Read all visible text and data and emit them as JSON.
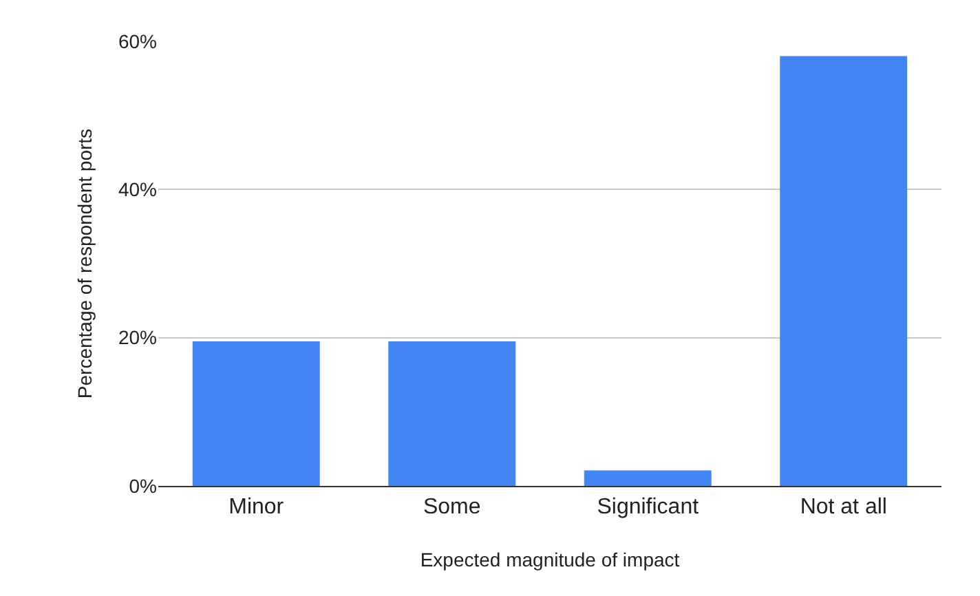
{
  "chart_data": {
    "type": "bar",
    "xlabel": "Expected magnitude of impact",
    "ylabel": "Percentage of respondent ports",
    "categories": [
      "Minor",
      "Some",
      "Significant",
      "Not at all"
    ],
    "values": [
      19.5,
      19.5,
      2.1,
      58
    ],
    "color": "#4285f4",
    "ylim": [
      0,
      60
    ],
    "yticks": [
      {
        "value": 0,
        "label": "0%"
      },
      {
        "value": 20,
        "label": "20%"
      },
      {
        "value": 40,
        "label": "40%"
      },
      {
        "value": 60,
        "label": "60%"
      }
    ],
    "grid": "y",
    "legend": false
  }
}
